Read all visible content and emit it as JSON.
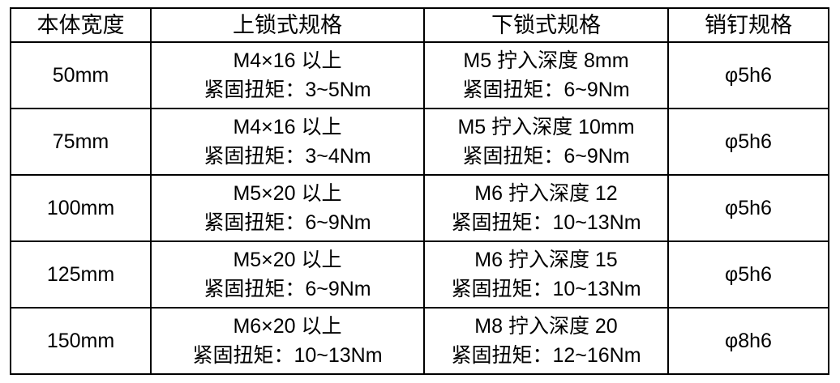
{
  "headers": [
    "本体宽度",
    "上锁式规格",
    "下锁式规格",
    "销钉规格"
  ],
  "rows": [
    {
      "width": "50mm",
      "upper": [
        "M4×16 以上",
        "紧固扭矩：3~5Nm"
      ],
      "lower": [
        "M5 拧入深度 8mm",
        "紧固扭矩：6~9Nm"
      ],
      "pin": "φ5h6"
    },
    {
      "width": "75mm",
      "upper": [
        "M4×16 以上",
        "紧固扭矩：3~4Nm"
      ],
      "lower": [
        "M5 拧入深度 10mm",
        "紧固扭矩：6~9Nm"
      ],
      "pin": "φ5h6"
    },
    {
      "width": "100mm",
      "upper": [
        "M5×20 以上",
        "紧固扭矩：6~9Nm"
      ],
      "lower": [
        "M6 拧入深度 12",
        "紧固扭矩：10~13Nm"
      ],
      "pin": "φ5h6"
    },
    {
      "width": "125mm",
      "upper": [
        "M5×20 以上",
        "紧固扭矩：6~9Nm"
      ],
      "lower": [
        "M6 拧入深度 15",
        "紧固扭矩：10~13Nm"
      ],
      "pin": "φ5h6"
    },
    {
      "width": "150mm",
      "upper": [
        "M6×20 以上",
        "紧固扭矩：10~13Nm"
      ],
      "lower": [
        "M8 拧入深度 20",
        "紧固扭矩：12~16Nm"
      ],
      "pin": "φ8h6"
    }
  ]
}
